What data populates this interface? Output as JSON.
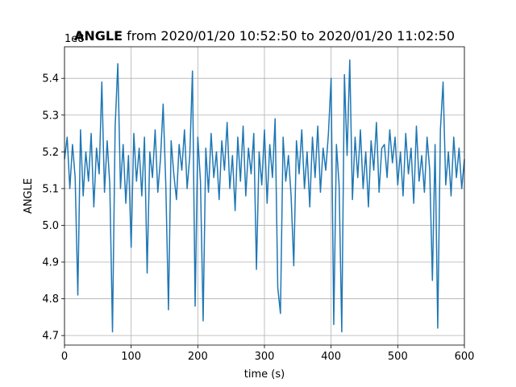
{
  "chart_data": {
    "type": "line",
    "title_bold": "ANGLE",
    "title": "from 2020/01/20 10:52:50 to 2020/01/20 11:02:50",
    "xlabel": "time (s)",
    "ylabel": "ANGLE",
    "y_offset_label": "1e8",
    "xlim": [
      0,
      600
    ],
    "ylim": [
      4.674,
      5.486
    ],
    "xticks": [
      0,
      100,
      200,
      300,
      400,
      500,
      600
    ],
    "yticks": [
      4.7,
      4.8,
      4.9,
      {
        "value": 5,
        "label": "5.0"
      },
      5.1,
      5.2,
      5.3,
      5.4
    ],
    "grid": true,
    "x": [
      0,
      4,
      8,
      12,
      16,
      20,
      24,
      28,
      32,
      36,
      40,
      44,
      48,
      52,
      56,
      60,
      64,
      68,
      72,
      76,
      80,
      84,
      88,
      92,
      96,
      100,
      104,
      108,
      112,
      116,
      120,
      124,
      128,
      132,
      136,
      140,
      144,
      148,
      152,
      156,
      160,
      164,
      168,
      172,
      176,
      180,
      184,
      188,
      192,
      196,
      200,
      204,
      208,
      212,
      216,
      220,
      224,
      228,
      232,
      236,
      240,
      244,
      248,
      252,
      256,
      260,
      264,
      268,
      272,
      276,
      280,
      284,
      288,
      292,
      296,
      300,
      304,
      308,
      312,
      316,
      320,
      324,
      328,
      332,
      336,
      340,
      344,
      348,
      352,
      356,
      360,
      364,
      368,
      372,
      376,
      380,
      384,
      388,
      392,
      396,
      400,
      404,
      408,
      412,
      416,
      420,
      424,
      428,
      432,
      436,
      440,
      444,
      448,
      452,
      456,
      460,
      464,
      468,
      472,
      476,
      480,
      484,
      488,
      492,
      496,
      500,
      504,
      508,
      512,
      516,
      520,
      524,
      528,
      532,
      536,
      540,
      544,
      548,
      552,
      556,
      560,
      564,
      568,
      572,
      576,
      580,
      584,
      588,
      592,
      596,
      600
    ],
    "series": [
      {
        "name": "ANGLE",
        "color": "#1f77b4",
        "values": [
          5.18,
          5.24,
          5.1,
          5.22,
          5.13,
          4.81,
          5.26,
          5.08,
          5.2,
          5.12,
          5.25,
          5.05,
          5.21,
          5.14,
          5.39,
          5.09,
          5.23,
          5.11,
          4.71,
          5.27,
          5.44,
          5.1,
          5.22,
          5.06,
          5.19,
          4.94,
          5.25,
          5.12,
          5.21,
          5.08,
          5.24,
          4.87,
          5.2,
          5.13,
          5.26,
          5.09,
          5.18,
          5.33,
          5.11,
          4.77,
          5.23,
          5.14,
          5.07,
          5.22,
          5.15,
          5.26,
          5.1,
          5.19,
          5.42,
          4.78,
          5.24,
          5.12,
          4.74,
          5.21,
          5.09,
          5.25,
          5.13,
          5.2,
          5.07,
          5.23,
          5.15,
          5.28,
          5.1,
          5.19,
          5.04,
          5.24,
          5.12,
          5.27,
          5.08,
          5.21,
          5.14,
          5.25,
          4.88,
          5.2,
          5.11,
          5.26,
          5.06,
          5.22,
          5.13,
          5.29,
          4.83,
          4.76,
          5.24,
          5.12,
          5.19,
          5.08,
          4.89,
          5.23,
          5.14,
          5.26,
          5.1,
          5.2,
          5.05,
          5.24,
          5.13,
          5.27,
          5.09,
          5.21,
          5.15,
          5.25,
          5.4,
          4.73,
          5.22,
          5.11,
          4.71,
          5.41,
          5.19,
          5.45,
          5.07,
          5.24,
          5.13,
          5.26,
          5.1,
          5.2,
          5.05,
          5.23,
          5.15,
          5.28,
          5.09,
          5.21,
          5.22,
          5.13,
          5.26,
          5.17,
          5.24,
          5.11,
          5.2,
          5.08,
          5.25,
          5.14,
          5.21,
          5.06,
          5.27,
          5.12,
          5.19,
          5.09,
          5.24,
          5.15,
          4.85,
          5.22,
          4.72,
          5.26,
          5.39,
          5.11,
          5.2,
          5.08,
          5.24,
          5.13,
          5.21,
          5.1,
          5.18
        ]
      }
    ]
  }
}
